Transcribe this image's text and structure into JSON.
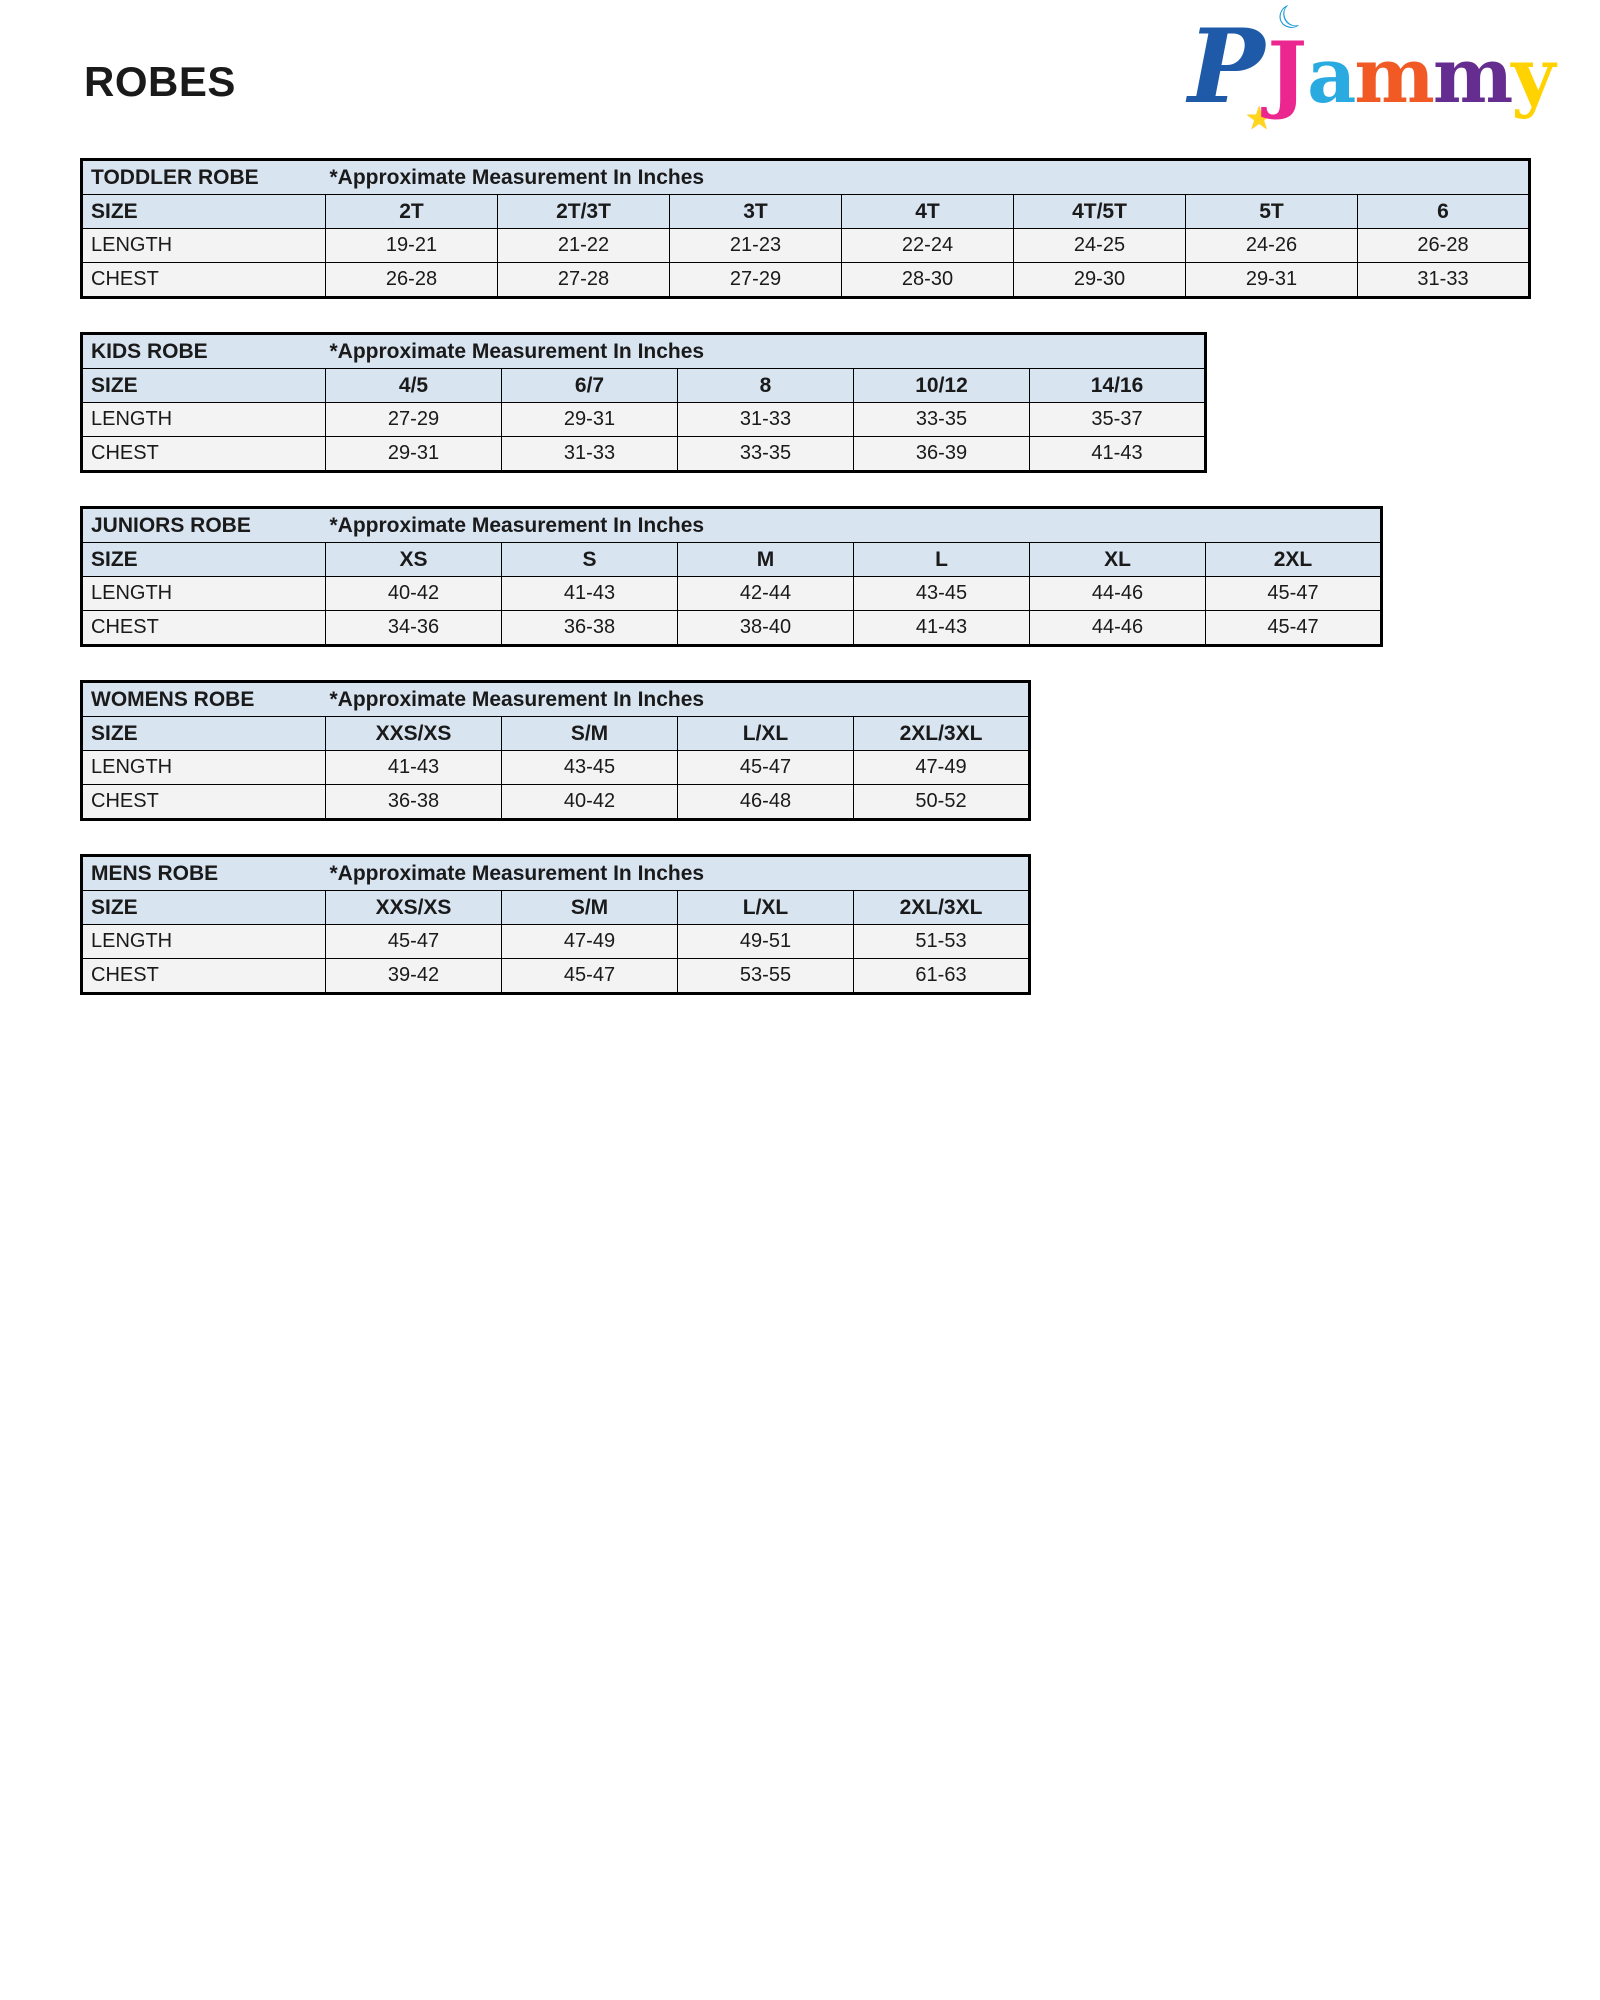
{
  "page": {
    "title": "ROBES"
  },
  "logo": {
    "brand": "PJammy",
    "p": "P",
    "j": "J",
    "a": "a",
    "m1": "m",
    "m2": "m",
    "y": "y",
    "star_icon": "star",
    "moon_icon": "crescent-moon",
    "colors": {
      "p": "#1E5AA8",
      "star": "#FFD51E",
      "moon": "#1B9AD7",
      "j": "#EC268F",
      "a": "#29ABE2",
      "m1": "#F15A24",
      "m2": "#662D91",
      "y": "#FFD200"
    }
  },
  "styles": {
    "header_bg": "#D9E4F1",
    "data_row_bg": "#F3F3F3",
    "border_color": "#000000"
  },
  "tables": [
    {
      "name": "TODDLER ROBE",
      "note": "*Approximate Measurement In Inches",
      "size_label": "SIZE",
      "columns": [
        "2T",
        "2T/3T",
        "3T",
        "4T",
        "4T/5T",
        "5T",
        "6"
      ],
      "rows": [
        {
          "label": "LENGTH",
          "values": [
            "19-21",
            "21-22",
            "21-23",
            "22-24",
            "24-25",
            "24-26",
            "26-28"
          ]
        },
        {
          "label": "CHEST",
          "values": [
            "26-28",
            "27-28",
            "27-29",
            "28-30",
            "29-30",
            "29-31",
            "31-33"
          ]
        }
      ]
    },
    {
      "name": "KIDS ROBE",
      "note": "*Approximate Measurement In Inches",
      "size_label": "SIZE",
      "columns": [
        "4/5",
        "6/7",
        "8",
        "10/12",
        "14/16"
      ],
      "rows": [
        {
          "label": "LENGTH",
          "values": [
            "27-29",
            "29-31",
            "31-33",
            "33-35",
            "35-37"
          ]
        },
        {
          "label": "CHEST",
          "values": [
            "29-31",
            "31-33",
            "33-35",
            "36-39",
            "41-43"
          ]
        }
      ]
    },
    {
      "name": "JUNIORS ROBE",
      "note": "*Approximate Measurement In Inches",
      "size_label": "SIZE",
      "columns": [
        "XS",
        "S",
        "M",
        "L",
        "XL",
        "2XL"
      ],
      "rows": [
        {
          "label": "LENGTH",
          "values": [
            "40-42",
            "41-43",
            "42-44",
            "43-45",
            "44-46",
            "45-47"
          ]
        },
        {
          "label": "CHEST",
          "values": [
            "34-36",
            "36-38",
            "38-40",
            "41-43",
            "44-46",
            "45-47"
          ]
        }
      ]
    },
    {
      "name": "WOMENS ROBE",
      "note": "*Approximate Measurement In Inches",
      "size_label": "SIZE",
      "columns": [
        "XXS/XS",
        "S/M",
        "L/XL",
        "2XL/3XL"
      ],
      "rows": [
        {
          "label": "LENGTH",
          "values": [
            "41-43",
            "43-45",
            "45-47",
            "47-49"
          ]
        },
        {
          "label": "CHEST",
          "values": [
            "36-38",
            "40-42",
            "46-48",
            "50-52"
          ]
        }
      ]
    },
    {
      "name": "MENS ROBE",
      "note": "*Approximate Measurement In Inches",
      "size_label": "SIZE",
      "columns": [
        "XXS/XS",
        "S/M",
        "L/XL",
        "2XL/3XL"
      ],
      "rows": [
        {
          "label": "LENGTH",
          "values": [
            "45-47",
            "47-49",
            "49-51",
            "51-53"
          ]
        },
        {
          "label": "CHEST",
          "values": [
            "39-42",
            "45-47",
            "53-55",
            "61-63"
          ]
        }
      ]
    }
  ]
}
